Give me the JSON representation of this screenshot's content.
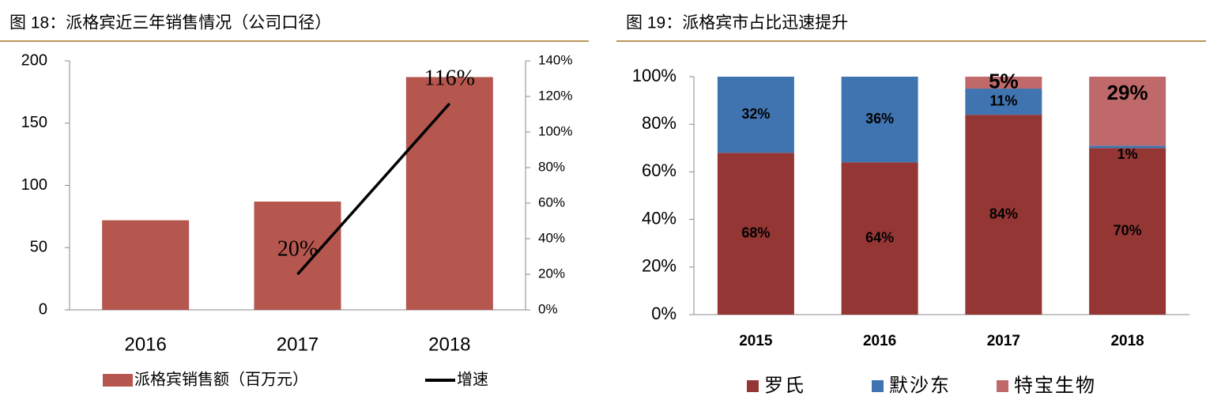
{
  "chart_data": [
    {
      "type": "bar",
      "title": "图 18：派格宾近三年销售情况（公司口径）",
      "categories": [
        "2016",
        "2017",
        "2018"
      ],
      "series": [
        {
          "name": "派格宾销售额（百万元）",
          "type": "bar",
          "color": "#b5574f",
          "values": [
            72,
            87,
            187
          ]
        },
        {
          "name": "增速",
          "type": "line",
          "axis": "y2",
          "color": "#000000",
          "values": [
            null,
            20,
            116
          ],
          "value_labels": [
            null,
            "20%",
            "116%"
          ]
        }
      ],
      "ylim": [
        0,
        200
      ],
      "yticks": [
        0,
        50,
        100,
        150,
        200
      ],
      "y2lim": [
        0,
        140
      ],
      "y2ticks": [
        {
          "value": 0,
          "label": "0%"
        },
        {
          "value": 20,
          "label": "20%"
        },
        {
          "value": 40,
          "label": "40%"
        },
        {
          "value": 60,
          "label": "60%"
        },
        {
          "value": 80,
          "label": "80%"
        },
        {
          "value": 100,
          "label": "100%"
        },
        {
          "value": 120,
          "label": "120%"
        },
        {
          "value": 140,
          "label": "140%"
        }
      ]
    },
    {
      "type": "stacked_bar",
      "title": "图 19：派格宾市占比迅速提升",
      "categories": [
        "2015",
        "2016",
        "2017",
        "2018"
      ],
      "series": [
        {
          "name": "罗氏",
          "color": "#943634",
          "values": [
            68,
            64,
            84,
            70
          ],
          "value_labels": [
            "68%",
            "64%",
            "84%",
            "70%"
          ]
        },
        {
          "name": "默沙东",
          "color": "#3f74b0",
          "values": [
            32,
            36,
            11,
            1
          ],
          "value_labels": [
            "32%",
            "36%",
            "11%",
            "1%"
          ]
        },
        {
          "name": "特宝生物",
          "color": "#c0696a",
          "values": [
            null,
            null,
            5,
            29
          ],
          "value_labels": [
            null,
            null,
            "5%",
            "29%"
          ]
        }
      ],
      "ylim": [
        0,
        100
      ],
      "yticks": [
        {
          "value": 0,
          "label": "0%"
        },
        {
          "value": 20,
          "label": "20%"
        },
        {
          "value": 40,
          "label": "40%"
        },
        {
          "value": 60,
          "label": "60%"
        },
        {
          "value": 80,
          "label": "80%"
        },
        {
          "value": 100,
          "label": "100%"
        }
      ]
    }
  ]
}
